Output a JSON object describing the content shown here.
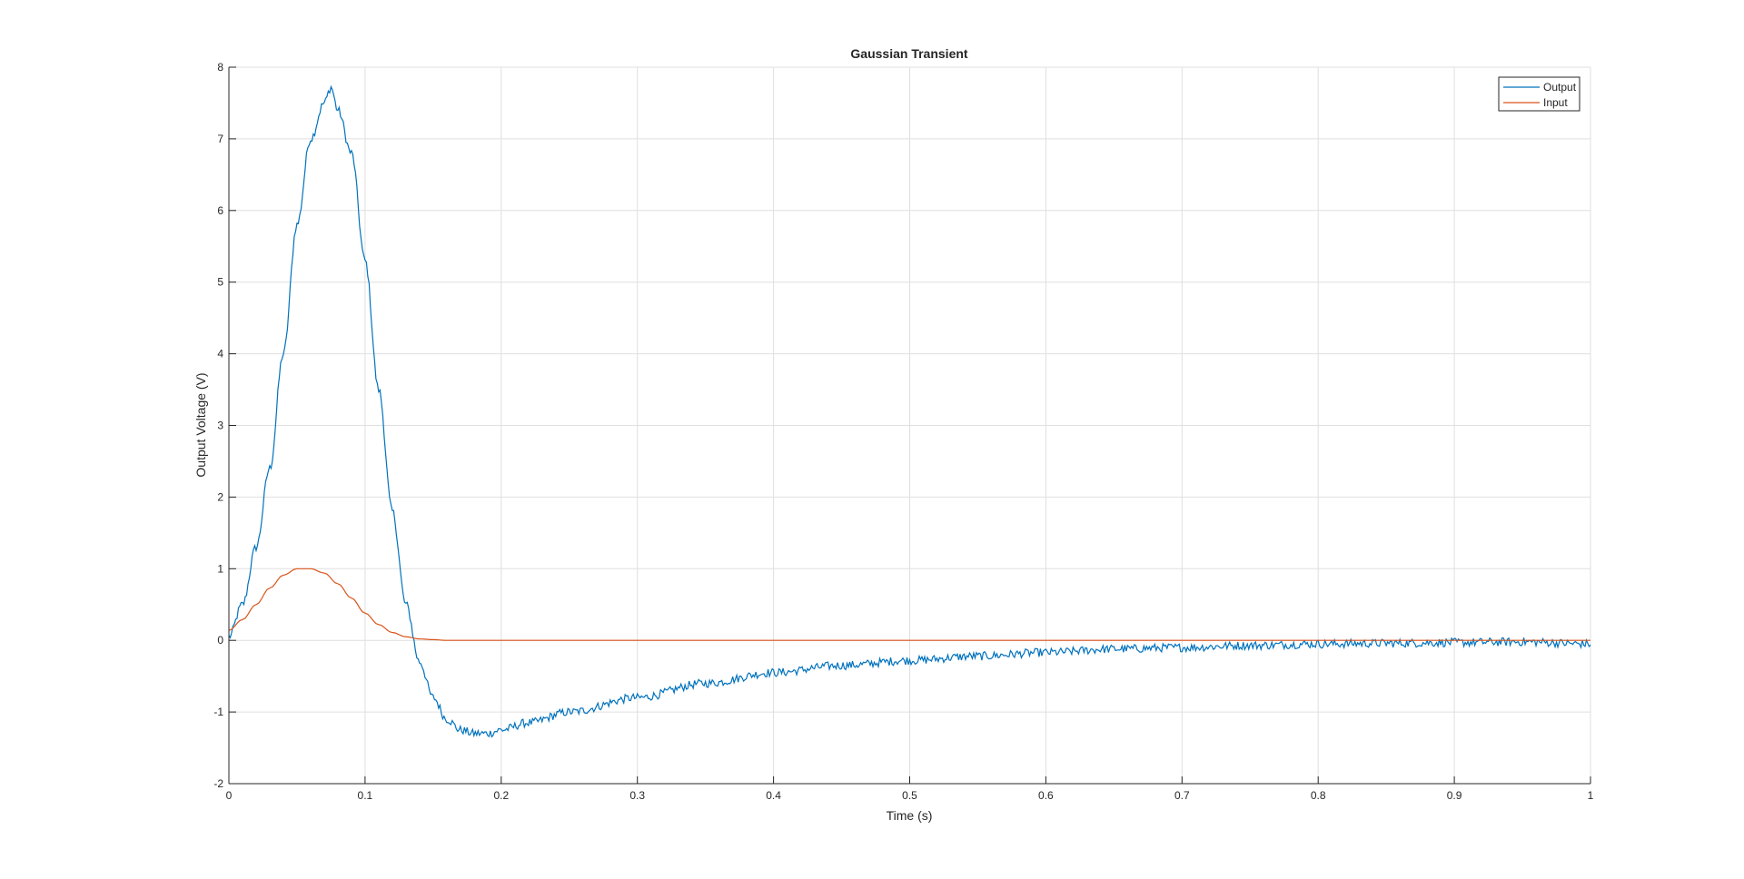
{
  "chart_data": {
    "type": "line",
    "title": "Gaussian Transient",
    "xlabel": "Time (s)",
    "ylabel": "Output Voltage (V)",
    "xlim": [
      0,
      1
    ],
    "ylim": [
      -2,
      8
    ],
    "xticks": [
      "0",
      "0.1",
      "0.2",
      "0.3",
      "0.4",
      "0.5",
      "0.6",
      "0.7",
      "0.8",
      "0.9",
      "1"
    ],
    "yticks": [
      "-2",
      "-1",
      "0",
      "1",
      "2",
      "3",
      "4",
      "5",
      "6",
      "7",
      "8"
    ],
    "grid": true,
    "legend_position": "top-right",
    "series": [
      {
        "name": "Output",
        "color": "#0072bd",
        "x": [
          0,
          0.01,
          0.02,
          0.03,
          0.04,
          0.05,
          0.06,
          0.07,
          0.075,
          0.08,
          0.09,
          0.1,
          0.11,
          0.12,
          0.13,
          0.14,
          0.15,
          0.16,
          0.17,
          0.18,
          0.19,
          0.2,
          0.22,
          0.25,
          0.3,
          0.35,
          0.4,
          0.45,
          0.5,
          0.55,
          0.6,
          0.65,
          0.7,
          0.75,
          0.8,
          0.85,
          0.9,
          0.95,
          1.0
        ],
        "values": [
          0.05,
          0.5,
          1.3,
          2.4,
          4.0,
          5.8,
          7.0,
          7.5,
          7.72,
          7.4,
          6.8,
          5.3,
          3.5,
          1.8,
          0.5,
          -0.3,
          -0.8,
          -1.1,
          -1.25,
          -1.3,
          -1.3,
          -1.25,
          -1.15,
          -1.0,
          -0.8,
          -0.6,
          -0.45,
          -0.35,
          -0.28,
          -0.22,
          -0.17,
          -0.12,
          -0.1,
          -0.07,
          -0.05,
          -0.04,
          -0.03,
          -0.02,
          -0.05
        ]
      },
      {
        "name": "Input",
        "color": "#d95319",
        "x": [
          0,
          0.01,
          0.02,
          0.03,
          0.04,
          0.05,
          0.06,
          0.07,
          0.08,
          0.09,
          0.1,
          0.11,
          0.12,
          0.13,
          0.14,
          0.15,
          0.16,
          0.17,
          0.2,
          0.3,
          0.4,
          0.5,
          0.6,
          0.7,
          0.8,
          0.9,
          1.0
        ],
        "values": [
          0.14,
          0.29,
          0.5,
          0.73,
          0.91,
          1.0,
          1.0,
          0.94,
          0.79,
          0.59,
          0.38,
          0.22,
          0.11,
          0.05,
          0.02,
          0.01,
          0.0,
          0.0,
          0.0,
          0.0,
          0.0,
          0.0,
          0.0,
          0.0,
          0.0,
          0.0,
          0.0
        ]
      }
    ]
  }
}
